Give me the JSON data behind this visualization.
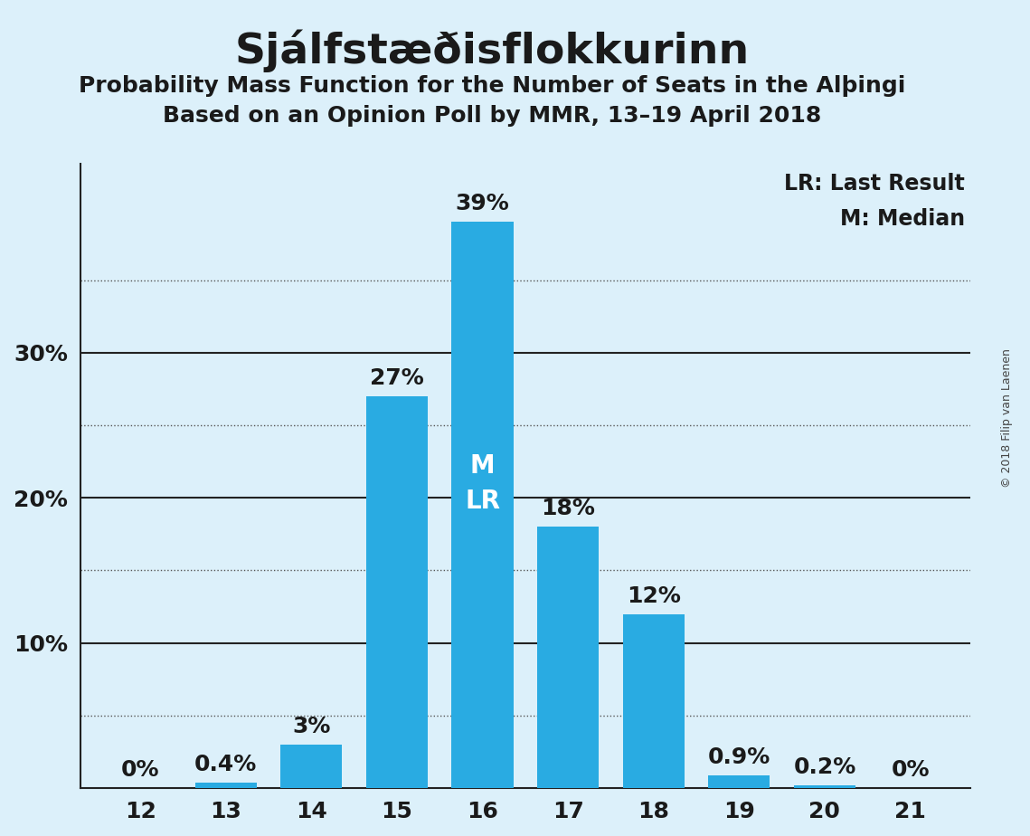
{
  "title": "Sjálfstæðisflokkurinn",
  "subtitle1": "Probability Mass Function for the Number of Seats in the Alþingi",
  "subtitle2": "Based on an Opinion Poll by MMR, 13–19 April 2018",
  "seats": [
    12,
    13,
    14,
    15,
    16,
    17,
    18,
    19,
    20,
    21
  ],
  "probabilities": [
    0.0,
    0.4,
    3.0,
    27.0,
    39.0,
    18.0,
    12.0,
    0.9,
    0.2,
    0.0
  ],
  "labels": [
    "0%",
    "0.4%",
    "3%",
    "27%",
    "39%",
    "18%",
    "12%",
    "0.9%",
    "0.2%",
    "0%"
  ],
  "bar_color": "#29ABE2",
  "background_color": "#DCF0FA",
  "text_color": "#1a1a1a",
  "white": "#FFFFFF",
  "median_seat": 16,
  "last_result_seat": 16,
  "ylim_max": 43,
  "ytick_positions": [
    10,
    20,
    30
  ],
  "ytick_labels": [
    "10%",
    "20%",
    "30%"
  ],
  "dotted_lines": [
    5,
    15,
    25,
    35
  ],
  "solid_lines": [
    10,
    20,
    30
  ],
  "copyright_text": "© 2018 Filip van Laenen",
  "legend_line1": "LR: Last Result",
  "legend_line2": "M: Median",
  "bar_width": 0.72,
  "figsize": [
    11.39,
    9.24
  ],
  "dpi": 100,
  "title_fontsize": 34,
  "subtitle_fontsize": 18,
  "tick_fontsize": 18,
  "label_fontsize": 18,
  "legend_fontsize": 17,
  "mlr_fontsize": 20
}
